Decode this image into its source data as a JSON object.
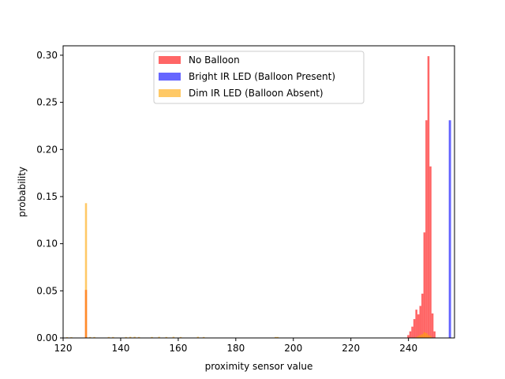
{
  "chart_data": {
    "type": "bar",
    "xlabel": "proximity sensor value",
    "ylabel": "probability",
    "xlim": [
      120,
      256
    ],
    "ylim": [
      0,
      0.31
    ],
    "xticks": [
      120,
      140,
      160,
      180,
      200,
      220,
      240
    ],
    "yticks": [
      0.0,
      0.05,
      0.1,
      0.15,
      0.2,
      0.25,
      0.3
    ],
    "grid": false,
    "legend_position": "upper-center",
    "series": [
      {
        "name": "No Balloon",
        "color": "#ff0000",
        "alpha": 0.6,
        "bars": [
          {
            "x": 127.6,
            "x2": 128.3,
            "y": 0.051
          },
          {
            "x": 239.6,
            "x2": 240.3,
            "y": 0.003
          },
          {
            "x": 240.3,
            "x2": 241.0,
            "y": 0.007
          },
          {
            "x": 241.0,
            "x2": 241.7,
            "y": 0.012
          },
          {
            "x": 241.7,
            "x2": 242.4,
            "y": 0.02
          },
          {
            "x": 242.4,
            "x2": 243.1,
            "y": 0.03
          },
          {
            "x": 243.1,
            "x2": 243.8,
            "y": 0.025
          },
          {
            "x": 243.8,
            "x2": 244.5,
            "y": 0.034
          },
          {
            "x": 244.5,
            "x2": 245.2,
            "y": 0.047
          },
          {
            "x": 245.2,
            "x2": 245.9,
            "y": 0.112
          },
          {
            "x": 245.9,
            "x2": 246.6,
            "y": 0.231
          },
          {
            "x": 246.6,
            "x2": 247.3,
            "y": 0.299
          },
          {
            "x": 247.3,
            "x2": 248.0,
            "y": 0.182
          },
          {
            "x": 248.0,
            "x2": 248.7,
            "y": 0.026
          },
          {
            "x": 248.7,
            "x2": 249.4,
            "y": 0.007
          }
        ]
      },
      {
        "name": "Bright IR LED (Balloon Present)",
        "color": "#0000ff",
        "alpha": 0.6,
        "bars": [
          {
            "x": 254.0,
            "x2": 254.8,
            "y": 0.231
          }
        ]
      },
      {
        "name": "Dim IR LED (Balloon Absent)",
        "color": "#ffa500",
        "alpha": 0.6,
        "bars": [
          {
            "x": 121.0,
            "x2": 121.7,
            "y": 0.0008
          },
          {
            "x": 122.5,
            "x2": 123.2,
            "y": 0.0008
          },
          {
            "x": 127.6,
            "x2": 128.3,
            "y": 0.143
          },
          {
            "x": 129.0,
            "x2": 129.7,
            "y": 0.001
          },
          {
            "x": 130.5,
            "x2": 131.2,
            "y": 0.001
          },
          {
            "x": 135.5,
            "x2": 136.2,
            "y": 0.001
          },
          {
            "x": 137.0,
            "x2": 137.7,
            "y": 0.001
          },
          {
            "x": 141.5,
            "x2": 142.2,
            "y": 0.001
          },
          {
            "x": 143.0,
            "x2": 143.7,
            "y": 0.0012
          },
          {
            "x": 144.5,
            "x2": 145.2,
            "y": 0.0012
          },
          {
            "x": 146.0,
            "x2": 146.7,
            "y": 0.001
          },
          {
            "x": 150.5,
            "x2": 151.2,
            "y": 0.001
          },
          {
            "x": 153.0,
            "x2": 153.7,
            "y": 0.0012
          },
          {
            "x": 155.5,
            "x2": 156.2,
            "y": 0.001
          },
          {
            "x": 158.0,
            "x2": 158.7,
            "y": 0.0012
          },
          {
            "x": 160.5,
            "x2": 161.2,
            "y": 0.001
          },
          {
            "x": 166.5,
            "x2": 167.2,
            "y": 0.0012
          },
          {
            "x": 168.5,
            "x2": 169.2,
            "y": 0.001
          },
          {
            "x": 193.5,
            "x2": 194.2,
            "y": 0.001
          },
          {
            "x": 194.2,
            "x2": 194.9,
            "y": 0.001
          },
          {
            "x": 242.4,
            "x2": 243.1,
            "y": 0.001
          },
          {
            "x": 243.1,
            "x2": 243.8,
            "y": 0.002
          },
          {
            "x": 243.8,
            "x2": 244.5,
            "y": 0.003
          },
          {
            "x": 244.5,
            "x2": 245.2,
            "y": 0.004
          },
          {
            "x": 245.2,
            "x2": 245.9,
            "y": 0.006
          },
          {
            "x": 245.9,
            "x2": 246.6,
            "y": 0.005
          },
          {
            "x": 246.6,
            "x2": 247.3,
            "y": 0.003
          },
          {
            "x": 247.3,
            "x2": 248.0,
            "y": 0.002
          }
        ]
      }
    ]
  }
}
